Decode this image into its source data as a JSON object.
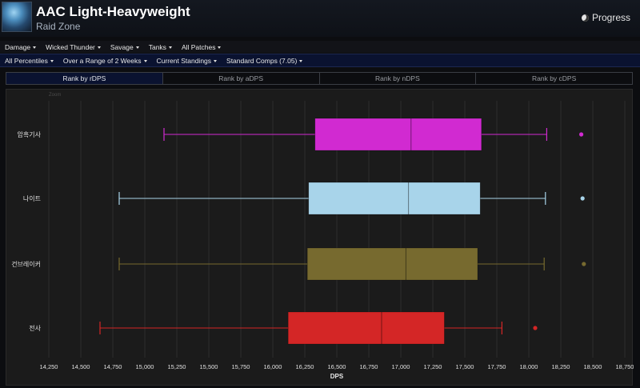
{
  "header": {
    "title": "AAC Light-Heavyweight",
    "subtitle": "Raid Zone",
    "progress_label": "Progress",
    "avatar_icon": "boss-portrait",
    "progress_icon": "globe-icon"
  },
  "filters_row1": [
    "Damage",
    "Wicked Thunder",
    "Savage",
    "Tanks",
    "All Patches"
  ],
  "filters_row2": [
    "All Percentiles",
    "Over a Range of 2 Weeks",
    "Current Standings",
    "Standard Comps (7.05)"
  ],
  "tabs": [
    "Rank by rDPS",
    "Rank by aDPS",
    "Rank by nDPS",
    "Rank by cDPS"
  ],
  "active_tab": 0,
  "chart_zoom_label": "Zoom",
  "chart_data": {
    "type": "boxplot",
    "orientation": "horizontal",
    "xlabel": "DPS",
    "xlim": [
      14250,
      18750
    ],
    "xticks": [
      14250,
      14500,
      14750,
      15000,
      15250,
      15500,
      15750,
      16000,
      16250,
      16500,
      16750,
      17000,
      17250,
      17500,
      17750,
      18000,
      18250,
      18500,
      18750
    ],
    "xtick_labels": [
      "14,250",
      "14,500",
      "14,750",
      "15,000",
      "15,250",
      "15,500",
      "15,750",
      "16,000",
      "16,250",
      "16,500",
      "16,750",
      "17,000",
      "17,250",
      "17,500",
      "17,750",
      "18,000",
      "18,250",
      "18,500",
      "18,750"
    ],
    "grid": true,
    "series": [
      {
        "name": "암흑기사",
        "color": "#d12ad1",
        "whisker_low": 15150,
        "q1": 16330,
        "median": 17080,
        "q3": 17630,
        "whisker_high": 18140,
        "outliers": [
          18410
        ]
      },
      {
        "name": "나이트",
        "color": "#a8d4ea",
        "whisker_low": 14800,
        "q1": 16280,
        "median": 17060,
        "q3": 17620,
        "whisker_high": 18130,
        "outliers": [
          18420
        ]
      },
      {
        "name": "건브레이커",
        "color": "#776a2f",
        "whisker_low": 14800,
        "q1": 16270,
        "median": 17040,
        "q3": 17600,
        "whisker_high": 18120,
        "outliers": [
          18430
        ]
      },
      {
        "name": "전사",
        "color": "#d42626",
        "whisker_low": 14650,
        "q1": 16120,
        "median": 16850,
        "q3": 17340,
        "whisker_high": 17790,
        "outliers": [
          18050
        ]
      }
    ]
  }
}
